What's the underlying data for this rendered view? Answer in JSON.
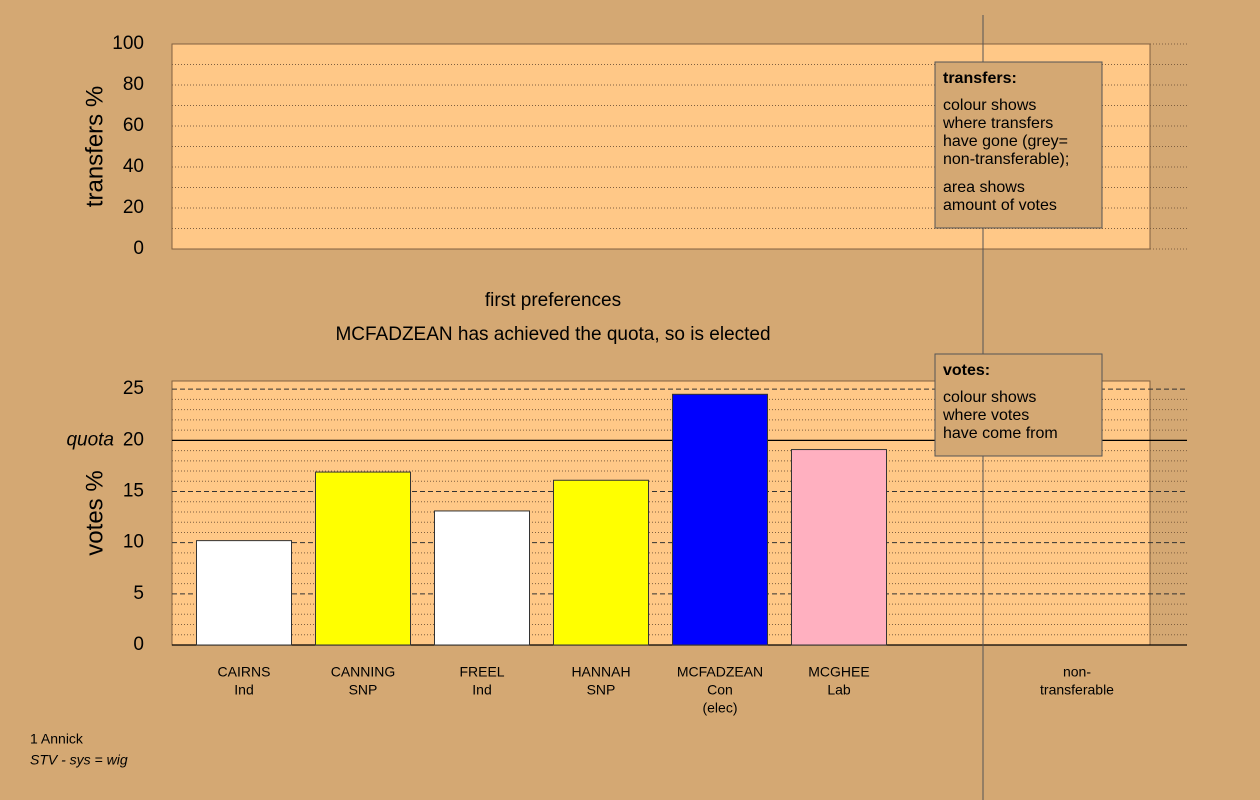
{
  "chart_data": [
    {
      "type": "empty",
      "ylabel": "transfers %",
      "ylim": [
        0,
        100
      ],
      "yticks": [
        0,
        20,
        40,
        60,
        80,
        100
      ],
      "yminorticks": [
        10,
        30,
        50,
        70,
        90
      ],
      "legend": {
        "title": "transfers:",
        "paragraphs": [
          [
            "colour shows",
            "where transfers",
            "have gone (grey=",
            "non-transferable);"
          ],
          [
            "area shows",
            "amount of votes"
          ]
        ]
      }
    },
    {
      "type": "bar",
      "title": "first preferences",
      "subtitle": "MCFADZEAN has achieved the quota, so is elected",
      "ylabel": "votes %",
      "ylim": [
        0,
        25.8
      ],
      "yticks": [
        0,
        5,
        10,
        15,
        20,
        25
      ],
      "yminorticks": [
        1,
        2,
        3,
        4,
        6,
        7,
        8,
        9,
        11,
        12,
        13,
        14,
        16,
        17,
        18,
        19,
        21,
        22,
        23,
        24
      ],
      "quota_label": "quota",
      "quota": 20,
      "categories": [
        "CAIRNS",
        "CANNING",
        "FREEL",
        "HANNAH",
        "MCFADZEAN",
        "MCGHEE"
      ],
      "parties": [
        "Ind",
        "SNP",
        "Ind",
        "SNP",
        "Con",
        "Lab"
      ],
      "notes": [
        null,
        null,
        null,
        null,
        "(elec)",
        null
      ],
      "values": [
        10.2,
        16.9,
        13.1,
        16.1,
        24.5,
        19.1
      ],
      "colors": [
        "#ffffff",
        "#ffff00",
        "#ffffff",
        "#ffff00",
        "#0000ff",
        "#ffb0c0"
      ],
      "extra_category": [
        "non-",
        "transferable"
      ],
      "legend": {
        "title": "votes:",
        "paragraphs": [
          [
            "colour shows",
            "where votes",
            "have come from"
          ]
        ]
      }
    }
  ],
  "footer": {
    "line1": "1 Annick",
    "line2": "STV - sys = wig"
  }
}
